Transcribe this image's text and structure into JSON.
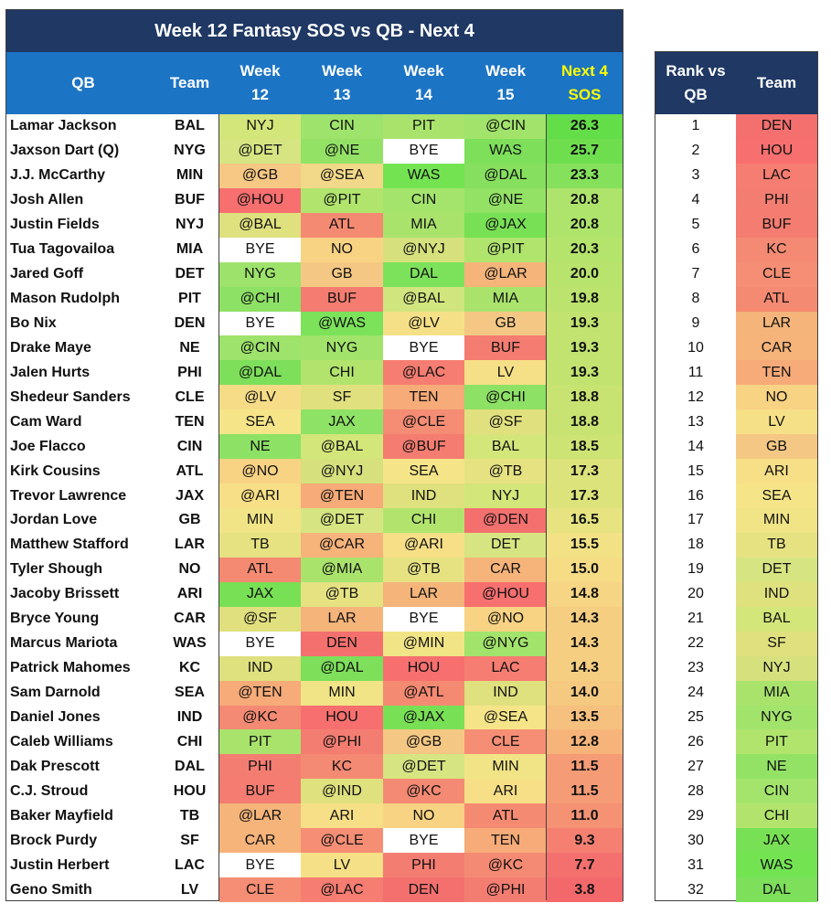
{
  "title": "Week 12 Fantasy SOS vs QB - Next 4",
  "headers": {
    "qb": "QB",
    "team": "Team",
    "w12": [
      "Week",
      "12"
    ],
    "w13": [
      "Week",
      "13"
    ],
    "w14": [
      "Week",
      "14"
    ],
    "w15": [
      "Week",
      "15"
    ],
    "sos": [
      "Next 4",
      "SOS"
    ]
  },
  "rank_headers": {
    "rank": [
      "Rank vs",
      "QB"
    ],
    "team": "Team"
  },
  "rows": [
    {
      "qb": "Lamar Jackson",
      "team": "BAL",
      "w": [
        "NYJ",
        "CIN",
        "PIT",
        "@CIN"
      ],
      "wc": [
        "#d3e67a",
        "#9ee36b",
        "#a9e36c",
        "#a1e36b"
      ],
      "sos": "26.3",
      "sc": "#63dd48"
    },
    {
      "qb": "Jaxson Dart (Q)",
      "team": "NYG",
      "w": [
        "@DET",
        "@NE",
        "BYE",
        "WAS"
      ],
      "wc": [
        "#d6e582",
        "#93e266",
        "#ffffff",
        "#7ddf5a"
      ],
      "sos": "25.7",
      "sc": "#6ede4f"
    },
    {
      "qb": "J.J. McCarthy",
      "team": "MIN",
      "w": [
        "@GB",
        "@SEA",
        "WAS",
        "@DAL"
      ],
      "wc": [
        "#f6c884",
        "#f2d889",
        "#73e352",
        "#86df5e"
      ],
      "sos": "23.3",
      "sc": "#85e05c"
    },
    {
      "qb": "Josh Allen",
      "team": "BUF",
      "w": [
        "@HOU",
        "@PIT",
        "CIN",
        "@NE"
      ],
      "wc": [
        "#f76f6f",
        "#b0e46d",
        "#a4e46c",
        "#93e266"
      ],
      "sos": "20.8",
      "sc": "#aee46b"
    },
    {
      "qb": "Justin Fields",
      "team": "NYJ",
      "w": [
        "@BAL",
        "ATL",
        "MIA",
        "@JAX"
      ],
      "wc": [
        "#dfe07e",
        "#f58a72",
        "#a9e36c",
        "#78e054"
      ],
      "sos": "20.8",
      "sc": "#aee46b"
    },
    {
      "qb": "Tua Tagovailoa",
      "team": "MIA",
      "w": [
        "BYE",
        "NO",
        "@NYJ",
        "@PIT"
      ],
      "wc": [
        "#ffffff",
        "#f8d383",
        "#d6e17d",
        "#b0e46d"
      ],
      "sos": "20.3",
      "sc": "#b4e46c"
    },
    {
      "qb": "Jared Goff",
      "team": "DET",
      "w": [
        "NYG",
        "GB",
        "DAL",
        "@LAR"
      ],
      "wc": [
        "#9de36b",
        "#f4c884",
        "#7de25b",
        "#f4b47a"
      ],
      "sos": "20.0",
      "sc": "#b8e36d"
    },
    {
      "qb": "Mason Rudolph",
      "team": "PIT",
      "w": [
        "@CHI",
        "BUF",
        "@BAL",
        "MIA"
      ],
      "wc": [
        "#8de165",
        "#f47c70",
        "#d1e57e",
        "#a9e36c"
      ],
      "sos": "19.8",
      "sc": "#bce36e"
    },
    {
      "qb": "Bo Nix",
      "team": "DEN",
      "w": [
        "BYE",
        "@WAS",
        "@LV",
        "GB"
      ],
      "wc": [
        "#ffffff",
        "#7be25a",
        "#f6e087",
        "#f4c884"
      ],
      "sos": "19.3",
      "sc": "#c2e370"
    },
    {
      "qb": "Drake Maye",
      "team": "NE",
      "w": [
        "@CIN",
        "NYG",
        "BYE",
        "BUF"
      ],
      "wc": [
        "#9ee36b",
        "#a2e36b",
        "#ffffff",
        "#f47c70"
      ],
      "sos": "19.3",
      "sc": "#c2e370"
    },
    {
      "qb": "Jalen Hurts",
      "team": "PHI",
      "w": [
        "@DAL",
        "CHI",
        "@LAC",
        "LV"
      ],
      "wc": [
        "#7ddf5a",
        "#b2e46d",
        "#f67d71",
        "#f6e087"
      ],
      "sos": "19.3",
      "sc": "#c2e370"
    },
    {
      "qb": "Shedeur Sanders",
      "team": "CLE",
      "w": [
        "@LV",
        "SF",
        "TEN",
        "@CHI"
      ],
      "wc": [
        "#f6dc86",
        "#e1e07e",
        "#f6ab78",
        "#8de165"
      ],
      "sos": "18.8",
      "sc": "#c8e372"
    },
    {
      "qb": "Cam Ward",
      "team": "TEN",
      "w": [
        "SEA",
        "JAX",
        "@CLE",
        "@SF"
      ],
      "wc": [
        "#f5e588",
        "#8ee265",
        "#f58c74",
        "#e1e07e"
      ],
      "sos": "18.8",
      "sc": "#c8e372"
    },
    {
      "qb": "Joe Flacco",
      "team": "CIN",
      "w": [
        "NE",
        "@BAL",
        "@BUF",
        "BAL"
      ],
      "wc": [
        "#8de165",
        "#d3e67a",
        "#f47c70",
        "#d3e67a"
      ],
      "sos": "18.5",
      "sc": "#cde374"
    },
    {
      "qb": "Kirk Cousins",
      "team": "ATL",
      "w": [
        "@NO",
        "@NYJ",
        "SEA",
        "@TB"
      ],
      "wc": [
        "#f8d383",
        "#d6e17d",
        "#f5e588",
        "#e6e282"
      ],
      "sos": "17.3",
      "sc": "#dce37b"
    },
    {
      "qb": "Trevor Lawrence",
      "team": "JAX",
      "w": [
        "@ARI",
        "@TEN",
        "IND",
        "NYJ"
      ],
      "wc": [
        "#f6df86",
        "#f6ab78",
        "#dfe07e",
        "#d3e67a"
      ],
      "sos": "17.3",
      "sc": "#dce37b"
    },
    {
      "qb": "Jordan Love",
      "team": "GB",
      "w": [
        "MIN",
        "@DET",
        "CHI",
        "@DEN"
      ],
      "wc": [
        "#f1e486",
        "#d6e582",
        "#b2e46d",
        "#f3706e"
      ],
      "sos": "16.5",
      "sc": "#e6e380"
    },
    {
      "qb": "Matthew Stafford",
      "team": "LAR",
      "w": [
        "TB",
        "@CAR",
        "@ARI",
        "DET"
      ],
      "wc": [
        "#e6e282",
        "#f6b37a",
        "#f6df86",
        "#d6e582"
      ],
      "sos": "15.5",
      "sc": "#f2e285"
    },
    {
      "qb": "Tyler Shough",
      "team": "NO",
      "w": [
        "ATL",
        "@MIA",
        "@TB",
        "CAR"
      ],
      "wc": [
        "#f58a72",
        "#a9e36c",
        "#e6e282",
        "#f6b37a"
      ],
      "sos": "15.0",
      "sc": "#f5dc85"
    },
    {
      "qb": "Jacoby Brissett",
      "team": "ARI",
      "w": [
        "JAX",
        "@TB",
        "LAR",
        "@HOU"
      ],
      "wc": [
        "#78e054",
        "#e6e282",
        "#f4b47a",
        "#f76f6f"
      ],
      "sos": "14.8",
      "sc": "#f6d584"
    },
    {
      "qb": "Bryce Young",
      "team": "CAR",
      "w": [
        "@SF",
        "LAR",
        "BYE",
        "@NO"
      ],
      "wc": [
        "#e1e07e",
        "#f4b47a",
        "#ffffff",
        "#f8d383"
      ],
      "sos": "14.3",
      "sc": "#f6ce82"
    },
    {
      "qb": "Marcus Mariota",
      "team": "WAS",
      "w": [
        "BYE",
        "DEN",
        "@MIN",
        "@NYG"
      ],
      "wc": [
        "#ffffff",
        "#f3706e",
        "#f1e486",
        "#a2e36b"
      ],
      "sos": "14.3",
      "sc": "#f6ce82"
    },
    {
      "qb": "Patrick Mahomes",
      "team": "KC",
      "w": [
        "IND",
        "@DAL",
        "HOU",
        "LAC"
      ],
      "wc": [
        "#dfe07e",
        "#7ddf5a",
        "#f76f6f",
        "#f67d71"
      ],
      "sos": "14.3",
      "sc": "#f6ce82"
    },
    {
      "qb": "Sam Darnold",
      "team": "SEA",
      "w": [
        "@TEN",
        "MIN",
        "@ATL",
        "IND"
      ],
      "wc": [
        "#f6ab78",
        "#f1e486",
        "#f58a72",
        "#dfe07e"
      ],
      "sos": "14.0",
      "sc": "#f6c981"
    },
    {
      "qb": "Daniel Jones",
      "team": "IND",
      "w": [
        "@KC",
        "HOU",
        "@JAX",
        "@SEA"
      ],
      "wc": [
        "#f48a73",
        "#f76f6f",
        "#78e054",
        "#f5e588"
      ],
      "sos": "13.5",
      "sc": "#f6c07e"
    },
    {
      "qb": "Caleb Williams",
      "team": "CHI",
      "w": [
        "PIT",
        "@PHI",
        "@GB",
        "CLE"
      ],
      "wc": [
        "#a9e36c",
        "#f47d72",
        "#f4c884",
        "#f58e74"
      ],
      "sos": "12.8",
      "sc": "#f6b47a"
    },
    {
      "qb": "Dak Prescott",
      "team": "DAL",
      "w": [
        "PHI",
        "KC",
        "@DET",
        "MIN"
      ],
      "wc": [
        "#f47d72",
        "#f48a73",
        "#d6e582",
        "#f1e486"
      ],
      "sos": "11.5",
      "sc": "#f59b75"
    },
    {
      "qb": "C.J. Stroud",
      "team": "HOU",
      "w": [
        "BUF",
        "@IND",
        "@KC",
        "ARI"
      ],
      "wc": [
        "#f47c70",
        "#dfe07e",
        "#f48a73",
        "#f6df86"
      ],
      "sos": "11.5",
      "sc": "#f59b75"
    },
    {
      "qb": "Baker Mayfield",
      "team": "TB",
      "w": [
        "@LAR",
        "ARI",
        "NO",
        "ATL"
      ],
      "wc": [
        "#f4b47a",
        "#f6df86",
        "#f8d383",
        "#f58a72"
      ],
      "sos": "11.0",
      "sc": "#f59274"
    },
    {
      "qb": "Brock Purdy",
      "team": "SF",
      "w": [
        "CAR",
        "@CLE",
        "BYE",
        "TEN"
      ],
      "wc": [
        "#f6b37a",
        "#f58e74",
        "#ffffff",
        "#f6ab78"
      ],
      "sos": "9.3",
      "sc": "#f58071"
    },
    {
      "qb": "Justin Herbert",
      "team": "LAC",
      "w": [
        "BYE",
        "LV",
        "PHI",
        "@KC"
      ],
      "wc": [
        "#ffffff",
        "#f6e087",
        "#f47d72",
        "#f48a73"
      ],
      "sos": "7.7",
      "sc": "#f4706e"
    },
    {
      "qb": "Geno Smith",
      "team": "LV",
      "w": [
        "CLE",
        "@LAC",
        "DEN",
        "@PHI"
      ],
      "wc": [
        "#f58e74",
        "#f67d71",
        "#f3706e",
        "#f47d72"
      ],
      "sos": "3.8",
      "sc": "#f3696b"
    }
  ],
  "ranks": [
    {
      "rank": "1",
      "team": "DEN",
      "c": "#f3706e"
    },
    {
      "rank": "2",
      "team": "HOU",
      "c": "#f76f6f"
    },
    {
      "rank": "3",
      "team": "LAC",
      "c": "#f67d71"
    },
    {
      "rank": "4",
      "team": "PHI",
      "c": "#f47d72"
    },
    {
      "rank": "5",
      "team": "BUF",
      "c": "#f47c70"
    },
    {
      "rank": "6",
      "team": "KC",
      "c": "#f48a73"
    },
    {
      "rank": "7",
      "team": "CLE",
      "c": "#f58e74"
    },
    {
      "rank": "8",
      "team": "ATL",
      "c": "#f58a72"
    },
    {
      "rank": "9",
      "team": "LAR",
      "c": "#f4b47a"
    },
    {
      "rank": "10",
      "team": "CAR",
      "c": "#f6b37a"
    },
    {
      "rank": "11",
      "team": "TEN",
      "c": "#f6ab78"
    },
    {
      "rank": "12",
      "team": "NO",
      "c": "#f8d383"
    },
    {
      "rank": "13",
      "team": "LV",
      "c": "#f6e087"
    },
    {
      "rank": "14",
      "team": "GB",
      "c": "#f4c884"
    },
    {
      "rank": "15",
      "team": "ARI",
      "c": "#f6df86"
    },
    {
      "rank": "16",
      "team": "SEA",
      "c": "#f5e588"
    },
    {
      "rank": "17",
      "team": "MIN",
      "c": "#f1e486"
    },
    {
      "rank": "18",
      "team": "TB",
      "c": "#e6e282"
    },
    {
      "rank": "19",
      "team": "DET",
      "c": "#d6e582"
    },
    {
      "rank": "20",
      "team": "IND",
      "c": "#dfe07e"
    },
    {
      "rank": "21",
      "team": "BAL",
      "c": "#d3e67a"
    },
    {
      "rank": "22",
      "team": "SF",
      "c": "#e1e07e"
    },
    {
      "rank": "23",
      "team": "NYJ",
      "c": "#d6e17d"
    },
    {
      "rank": "24",
      "team": "MIA",
      "c": "#a9e36c"
    },
    {
      "rank": "25",
      "team": "NYG",
      "c": "#a2e36b"
    },
    {
      "rank": "26",
      "team": "PIT",
      "c": "#b0e46d"
    },
    {
      "rank": "27",
      "team": "NE",
      "c": "#93e266"
    },
    {
      "rank": "28",
      "team": "CIN",
      "c": "#a4e46c"
    },
    {
      "rank": "29",
      "team": "CHI",
      "c": "#b2e46d"
    },
    {
      "rank": "30",
      "team": "JAX",
      "c": "#78e054"
    },
    {
      "rank": "31",
      "team": "WAS",
      "c": "#73e352"
    },
    {
      "rank": "32",
      "team": "DAL",
      "c": "#7ddf5a"
    }
  ]
}
